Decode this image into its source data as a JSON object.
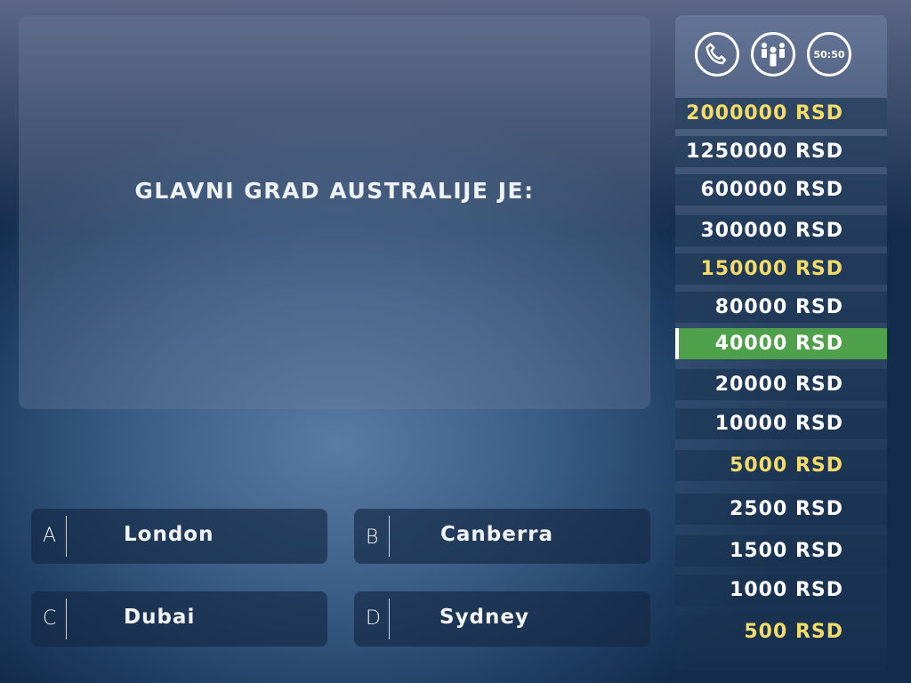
{
  "question": "GLAVNI GRAD AUSTRALIJE JE:",
  "answers": [
    {
      "letter": "A",
      "text": "London"
    },
    {
      "letter": "B",
      "text": "Canberra"
    },
    {
      "letter": "C",
      "text": "Dubai"
    },
    {
      "letter": "D",
      "text": "Sydney"
    }
  ],
  "lifelines": {
    "phone": "phone-a-friend",
    "audience": "ask-the-audience",
    "fifty": "50:50"
  },
  "prizes": [
    {
      "label": "2000000 RSD",
      "milestone": true
    },
    {
      "label": "1250000 RSD",
      "milestone": false
    },
    {
      "label": "600000 RSD",
      "milestone": false
    },
    {
      "label": "300000 RSD",
      "milestone": false
    },
    {
      "label": "150000 RSD",
      "milestone": true
    },
    {
      "label": "80000 RSD",
      "milestone": false
    },
    {
      "label": "40000 RSD",
      "milestone": false,
      "current": true
    },
    {
      "label": "20000 RSD",
      "milestone": false
    },
    {
      "label": "10000 RSD",
      "milestone": false
    },
    {
      "label": "5000 RSD",
      "milestone": true
    },
    {
      "label": "2500 RSD",
      "milestone": false
    },
    {
      "label": "1500 RSD",
      "milestone": false
    },
    {
      "label": "1000 RSD",
      "milestone": false
    },
    {
      "label": "500 RSD",
      "milestone": true
    }
  ],
  "colors": {
    "milestone": "#f3dc6a",
    "current": "#4fa04a"
  }
}
